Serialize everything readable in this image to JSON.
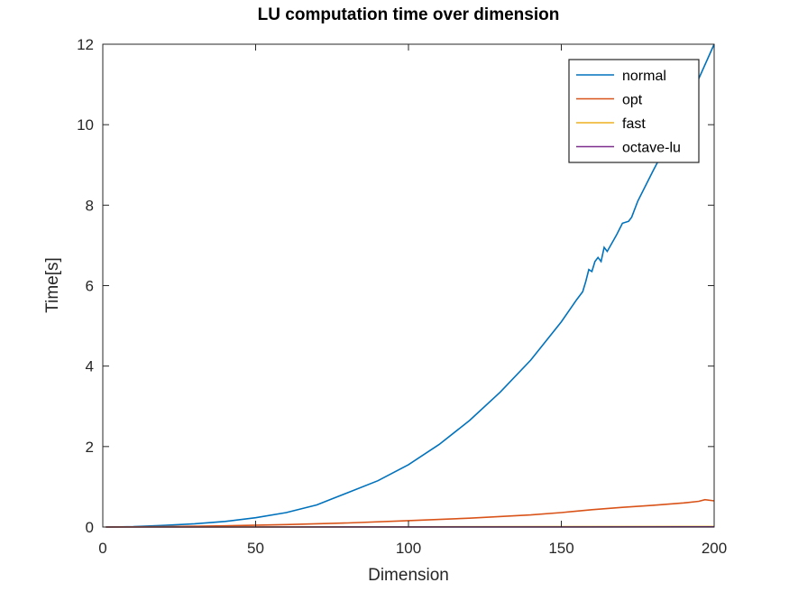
{
  "chart_data": {
    "type": "line",
    "title": "LU computation time over dimension",
    "xlabel": "Dimension",
    "ylabel": "Time[s]",
    "xlim": [
      0,
      200
    ],
    "ylim": [
      0,
      12
    ],
    "xticks": [
      0,
      50,
      100,
      150,
      200
    ],
    "yticks": [
      0,
      2,
      4,
      6,
      8,
      10,
      12
    ],
    "grid": false,
    "legend_position": "top-right",
    "series": [
      {
        "name": "normal",
        "color": "#0072BD",
        "x": [
          1,
          10,
          20,
          30,
          40,
          50,
          60,
          70,
          75,
          80,
          90,
          100,
          110,
          120,
          130,
          140,
          150,
          155,
          157,
          158,
          159,
          160,
          161,
          162,
          163,
          164,
          165,
          168,
          170,
          172,
          173,
          175,
          180,
          190,
          200
        ],
        "y": [
          0.0,
          0.01,
          0.04,
          0.08,
          0.14,
          0.23,
          0.36,
          0.55,
          0.7,
          0.85,
          1.15,
          1.55,
          2.05,
          2.65,
          3.35,
          4.15,
          5.1,
          5.65,
          5.85,
          6.1,
          6.4,
          6.35,
          6.6,
          6.7,
          6.6,
          6.95,
          6.85,
          7.25,
          7.55,
          7.6,
          7.7,
          8.1,
          8.85,
          10.3,
          12.0
        ]
      },
      {
        "name": "opt",
        "color": "#D95319",
        "x": [
          1,
          20,
          40,
          60,
          80,
          100,
          120,
          140,
          150,
          160,
          170,
          180,
          190,
          195,
          197,
          200
        ],
        "y": [
          0.0,
          0.01,
          0.03,
          0.06,
          0.1,
          0.16,
          0.22,
          0.3,
          0.36,
          0.43,
          0.49,
          0.54,
          0.6,
          0.64,
          0.68,
          0.65
        ]
      },
      {
        "name": "fast",
        "color": "#EDB120",
        "x": [
          1,
          50,
          100,
          150,
          200
        ],
        "y": [
          0.0,
          0.002,
          0.005,
          0.009,
          0.014
        ]
      },
      {
        "name": "octave-lu",
        "color": "#7E2F8E",
        "x": [
          1,
          50,
          100,
          150,
          200
        ],
        "y": [
          0.0,
          0.001,
          0.002,
          0.003,
          0.005
        ]
      }
    ]
  }
}
